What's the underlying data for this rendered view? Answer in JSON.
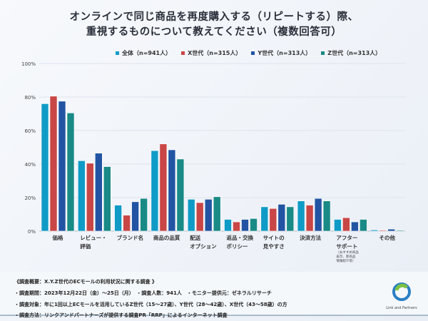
{
  "title_lines": [
    "オンラインで同じ商品を再度購入する（リピートする）際、",
    "重視するものについて教えてください（複数回答可）"
  ],
  "chart_data": {
    "type": "bar",
    "categories": [
      [
        "価格"
      ],
      [
        "レビュー・",
        "評価"
      ],
      [
        "ブランド名"
      ],
      [
        "商品の品質"
      ],
      [
        "配送",
        "オプション"
      ],
      [
        "返品・交換",
        "ポリシー"
      ],
      [
        "サイトの",
        "見やすさ"
      ],
      [
        "決済方法"
      ],
      [
        "アフター",
        "サポート"
      ],
      [
        "その他"
      ]
    ],
    "category_note": {
      "index": 8,
      "text": "（おすすめ商品表示、新商品情報紹介等）"
    },
    "series": [
      {
        "name": "全体（n=941人）",
        "color": "#0f9bc6",
        "values": [
          76,
          42,
          15.5,
          48,
          19,
          7,
          14.5,
          18,
          7,
          0.7
        ]
      },
      {
        "name": "X世代（n=315人）",
        "color": "#c94646",
        "values": [
          80.5,
          40.5,
          9.5,
          52,
          17,
          5.5,
          13.5,
          15.5,
          8,
          0.5
        ]
      },
      {
        "name": "Y世代（n=313人）",
        "color": "#2254a3",
        "values": [
          77.5,
          46.5,
          17.5,
          48.5,
          19,
          7,
          16,
          19.5,
          5.5,
          1.2
        ]
      },
      {
        "name": "Z世代（n=313人）",
        "color": "#1a8a86",
        "values": [
          70.5,
          38.5,
          19.5,
          43,
          20.5,
          7.5,
          14.5,
          18,
          7,
          0.5
        ]
      }
    ],
    "yticks": [
      "0%",
      "20%",
      "40%",
      "60%",
      "80%",
      "100%"
    ],
    "ylim": [
      0,
      100
    ],
    "grid": true,
    "legend": "top"
  },
  "footer": {
    "lines": [
      "《調査概要：X.Y.Z世代のECモールの利用状況に関する調査 》",
      "・調査期間：2023年12月22日（金）～25日（月）　・調査人数：941人　・モニター提供元：ゼネラルリサーチ",
      "・調査対象：年に1回以上ECモールを活用しているZ世代（15～27歳）、Y世代（28～42歳）、X世代（43～58歳）の方",
      "・調査方法：リンクアンドパートナーズが提供する調査PR「RRP」によるインターネット調査"
    ],
    "logo_text": "Link and Partners"
  }
}
